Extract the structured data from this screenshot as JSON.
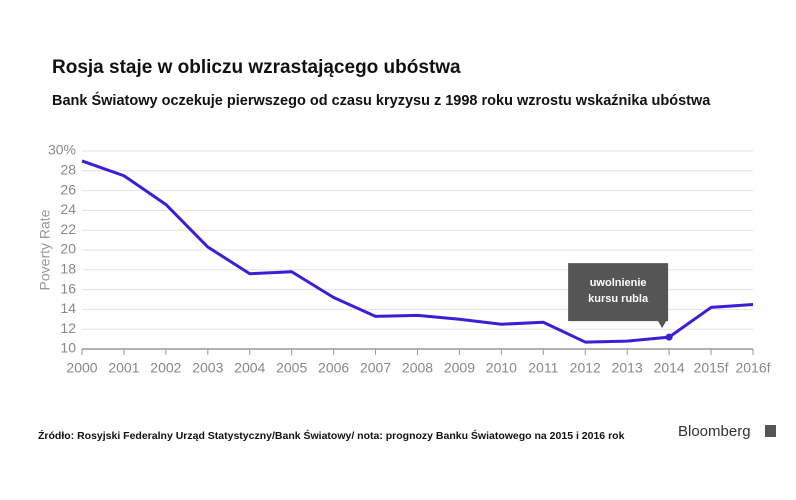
{
  "chart_data": {
    "type": "line",
    "title": "Rosja staje w obliczu wzrastającego ubóstwa",
    "subtitle": "Bank Światowy oczekuje pierwszego od czasu kryzysu z 1998 roku wzrostu wskaźnika ubóstwa",
    "y_label": "Poverty Rate",
    "categories": [
      "2000",
      "2001",
      "2002",
      "2003",
      "2004",
      "2005",
      "2006",
      "2007",
      "2008",
      "2009",
      "2010",
      "2011",
      "2012",
      "2013",
      "2014",
      "2015f",
      "2016f"
    ],
    "series": [
      {
        "name": "Poverty Rate",
        "color": "#3d1ed6",
        "values": [
          29,
          27.5,
          24.6,
          20.3,
          17.6,
          17.8,
          15.2,
          13.3,
          13.4,
          13.0,
          12.5,
          12.7,
          10.7,
          10.8,
          11.2,
          14.2,
          14.5
        ]
      }
    ],
    "ylim": [
      10,
      30
    ],
    "yticks": [
      10,
      12,
      14,
      16,
      18,
      20,
      22,
      24,
      26,
      28,
      {
        "value": 30,
        "label": "30%"
      }
    ],
    "grid": true,
    "annotation": {
      "category": "2014",
      "lines": [
        "uwolnienie",
        "kursu rubla"
      ]
    },
    "source": "Źródło: Rosyjski Federalny Urząd Statystyczny/Bank Światowy/ nota: prognozy Banku Światowego na 2015 i 2016 rok",
    "logo": "Bloomberg"
  }
}
